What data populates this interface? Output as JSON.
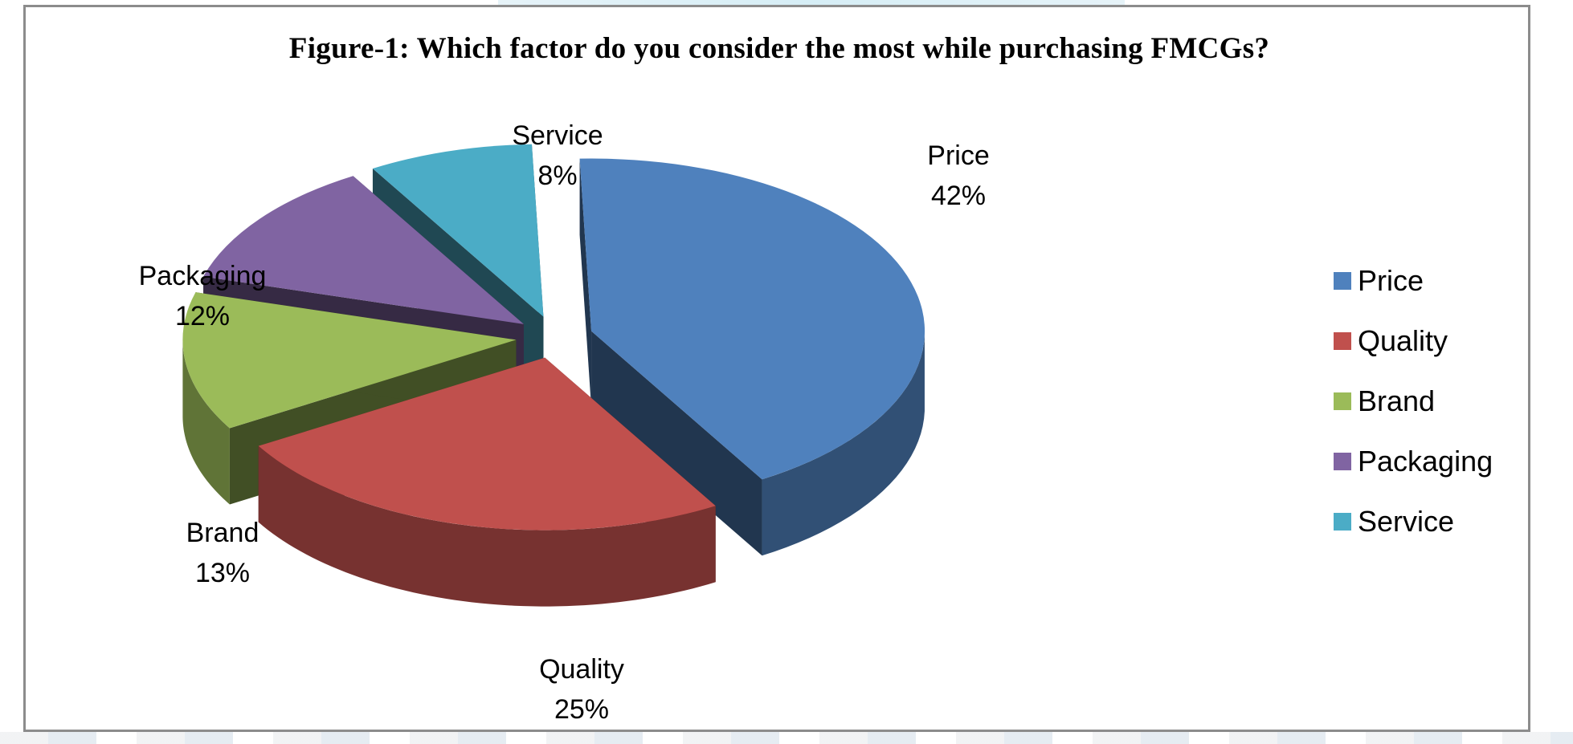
{
  "chart_data": {
    "type": "pie",
    "title": "Figure-1: Which factor do you consider the most while purchasing  FMCGs?",
    "categories": [
      "Price",
      "Quality",
      "Brand",
      "Packaging",
      "Service"
    ],
    "values": [
      42,
      25,
      13,
      12,
      8
    ],
    "data_labels": [
      "42%",
      "25%",
      "13%",
      "12%",
      "8%"
    ],
    "colors": [
      "#4F81BD",
      "#C0504D",
      "#9BBB59",
      "#8064A2",
      "#4BACC6"
    ],
    "legend_position": "right",
    "exploded": true,
    "style": "3d"
  }
}
